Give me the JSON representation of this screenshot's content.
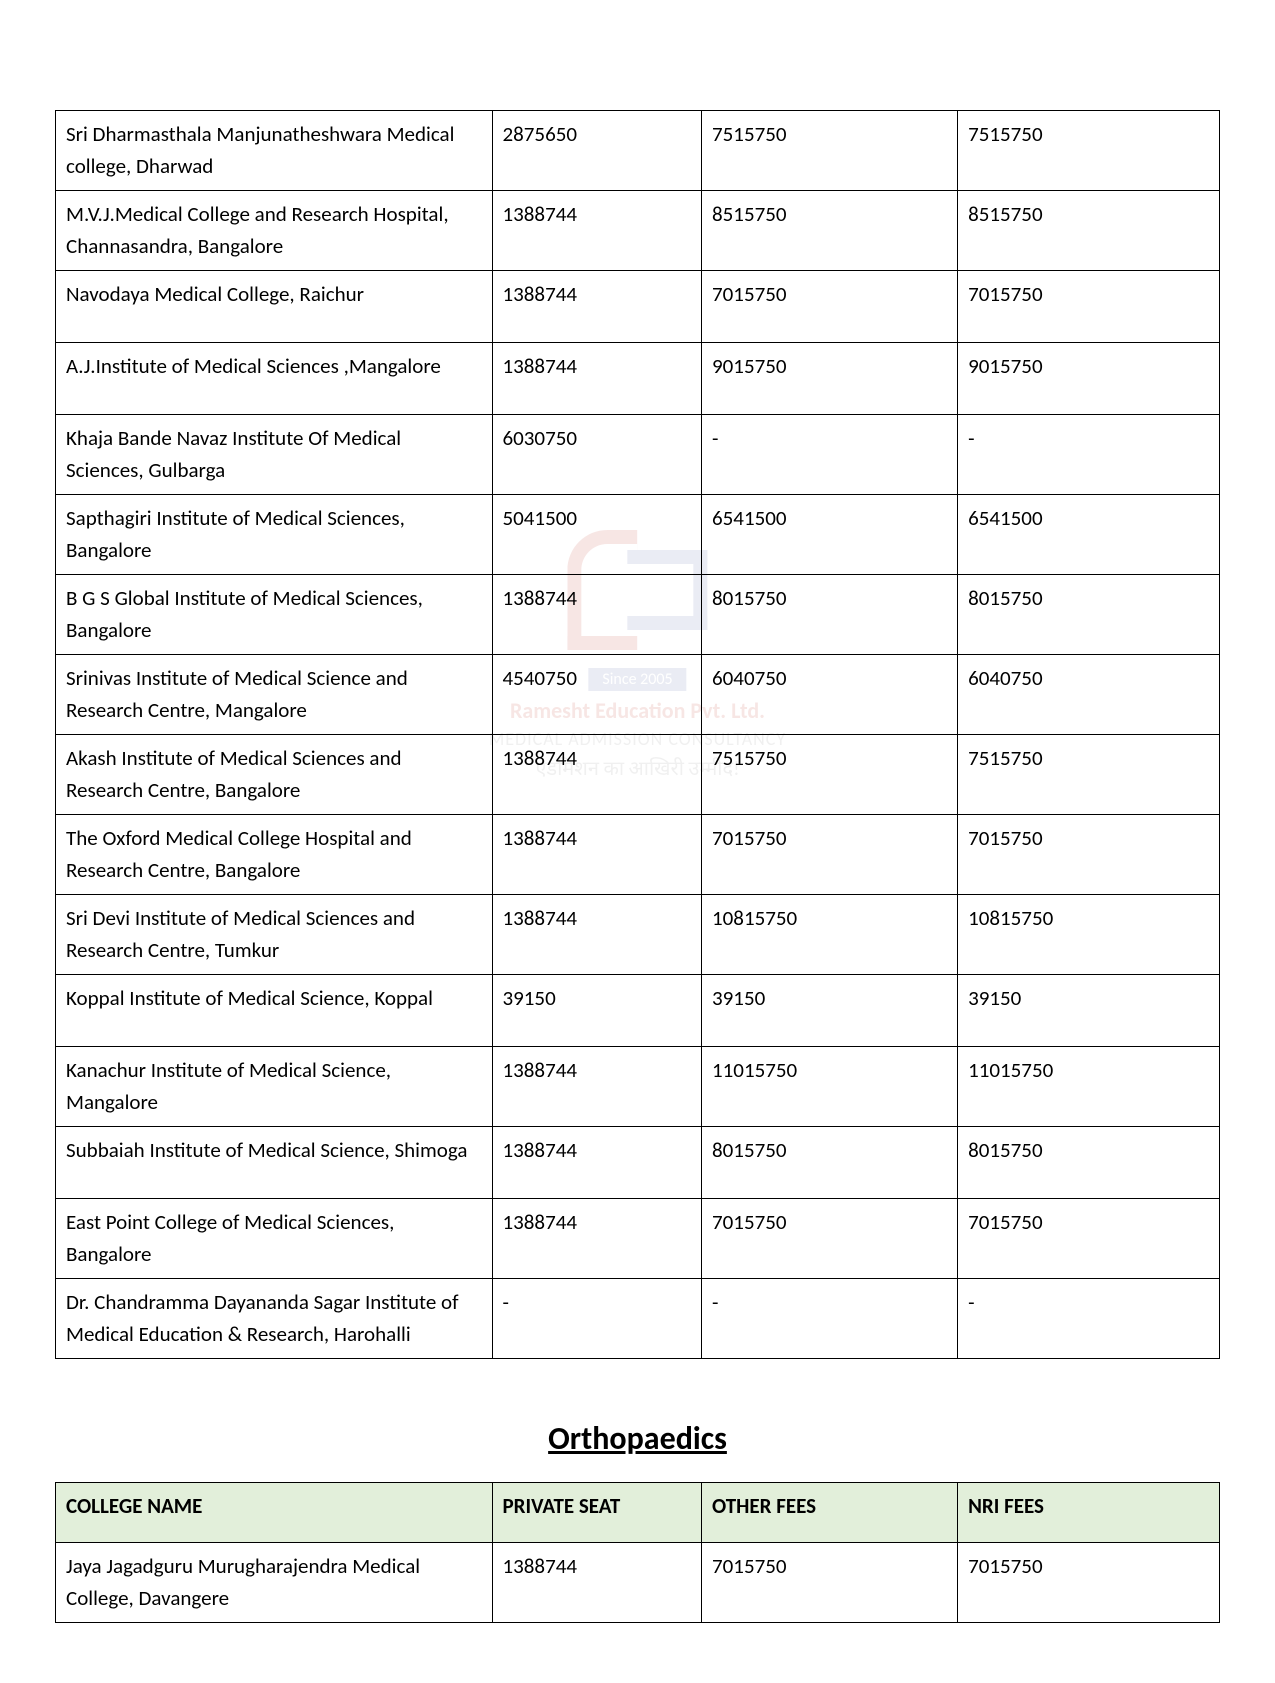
{
  "watermark": {
    "since": "Since 2005",
    "company": "Ramesht Education Pvt. Ltd.",
    "tagline1": "MEDICAL ADMISSION CONSULTANCY",
    "tagline2": "एडमिशन का आखिरी उम्मीद!"
  },
  "table1": {
    "rows": [
      {
        "name": "Sri Dharmasthala Manjunatheshwara Medical college, Dharwad",
        "c1": "2875650",
        "c2": "7515750",
        "c3": "7515750"
      },
      {
        "name": "M.V.J.Medical College and Research Hospital, Channasandra, Bangalore",
        "c1": "1388744",
        "c2": "8515750",
        "c3": "8515750"
      },
      {
        "name": "Navodaya Medical College, Raichur",
        "c1": "1388744",
        "c2": "7015750",
        "c3": "7015750",
        "tall": true
      },
      {
        "name": "A.J.Institute of Medical Sciences ,Mangalore",
        "c1": "1388744",
        "c2": "9015750",
        "c3": "9015750",
        "tall": true
      },
      {
        "name": "Khaja Bande Navaz Institute Of Medical Sciences, Gulbarga",
        "c1": "6030750",
        "c2": "-",
        "c3": "-"
      },
      {
        "name": "Sapthagiri Institute of Medical Sciences, Bangalore",
        "c1": "5041500",
        "c2": "6541500",
        "c3": "6541500",
        "tall": true
      },
      {
        "name": "B G S Global Institute of Medical Sciences, Bangalore",
        "c1": "1388744",
        "c2": "8015750",
        "c3": "8015750"
      },
      {
        "name": "Srinivas Institute of Medical Science and Research Centre, Mangalore",
        "c1": "4540750",
        "c2": "6040750",
        "c3": "6040750"
      },
      {
        "name": "Akash Institute of Medical Sciences and Research Centre, Bangalore",
        "c1": "1388744",
        "c2": "7515750",
        "c3": "7515750"
      },
      {
        "name": "The Oxford Medical College Hospital and Research Centre, Bangalore",
        "c1": "1388744",
        "c2": "7015750",
        "c3": "7015750"
      },
      {
        "name": "Sri Devi Institute of Medical Sciences and Research Centre, Tumkur",
        "c1": "1388744",
        "c2": "10815750",
        "c3": "10815750"
      },
      {
        "name": "Koppal Institute of Medical Science, Koppal",
        "c1": "39150",
        "c2": "39150",
        "c3": "39150",
        "tall": true
      },
      {
        "name": "Kanachur Institute of Medical Science, Mangalore",
        "c1": "1388744",
        "c2": "11015750",
        "c3": "11015750",
        "tall": true
      },
      {
        "name": "Subbaiah Institute of Medical Science, Shimoga",
        "c1": "1388744",
        "c2": "8015750",
        "c3": "8015750",
        "tall": true
      },
      {
        "name": "East Point College of Medical Sciences, Bangalore",
        "c1": "1388744",
        "c2": "7015750",
        "c3": "7015750",
        "tall": true
      },
      {
        "name": "Dr. Chandramma Dayananda Sagar Institute of Medical Education & Research, Harohalli",
        "c1": "-",
        "c2": "-",
        "c3": "-"
      }
    ]
  },
  "section_title": "Orthopaedics",
  "table2": {
    "headers": {
      "name": "COLLEGE NAME",
      "c1": "PRIVATE SEAT",
      "c2": "OTHER FEES",
      "c3": "NRI FEES"
    },
    "rows": [
      {
        "name": "Jaya Jagadguru Murugharajendra Medical College, Davangere",
        "c1": "1388744",
        "c2": "7015750",
        "c3": "7015750"
      }
    ]
  },
  "columns": {
    "widths": [
      "37.5%",
      "18%",
      "22%",
      "22.5%"
    ]
  },
  "styles": {
    "background_color": "#ffffff",
    "border_color": "#000000",
    "header_bg": "#e2efda",
    "font_family": "Calibri",
    "cell_fontsize": 21,
    "title_fontsize": 32
  }
}
